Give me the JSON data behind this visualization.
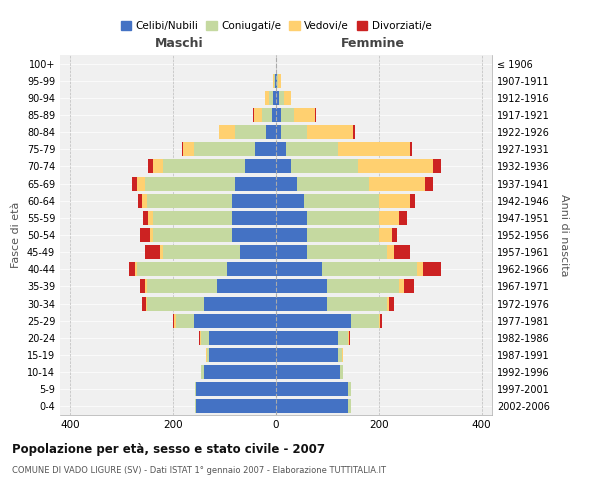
{
  "age_groups": [
    "0-4",
    "5-9",
    "10-14",
    "15-19",
    "20-24",
    "25-29",
    "30-34",
    "35-39",
    "40-44",
    "45-49",
    "50-54",
    "55-59",
    "60-64",
    "65-69",
    "70-74",
    "75-79",
    "80-84",
    "85-89",
    "90-94",
    "95-99",
    "100+"
  ],
  "birth_years": [
    "2002-2006",
    "1997-2001",
    "1992-1996",
    "1987-1991",
    "1982-1986",
    "1977-1981",
    "1972-1976",
    "1967-1971",
    "1962-1966",
    "1957-1961",
    "1952-1956",
    "1947-1951",
    "1942-1946",
    "1937-1941",
    "1932-1936",
    "1927-1931",
    "1922-1926",
    "1917-1921",
    "1912-1916",
    "1907-1911",
    "≤ 1906"
  ],
  "maschi": {
    "celibi": [
      155,
      155,
      140,
      130,
      130,
      160,
      140,
      115,
      95,
      70,
      85,
      85,
      85,
      80,
      60,
      40,
      20,
      8,
      5,
      2,
      0
    ],
    "coniugati": [
      3,
      3,
      5,
      5,
      15,
      35,
      110,
      135,
      175,
      150,
      155,
      155,
      165,
      175,
      160,
      120,
      60,
      20,
      8,
      2,
      0
    ],
    "vedovi": [
      0,
      0,
      0,
      1,
      2,
      3,
      3,
      5,
      5,
      5,
      5,
      8,
      10,
      15,
      20,
      20,
      30,
      15,
      8,
      2,
      0
    ],
    "divorziati": [
      0,
      0,
      0,
      0,
      2,
      3,
      8,
      10,
      10,
      30,
      20,
      10,
      8,
      10,
      8,
      3,
      0,
      2,
      0,
      0,
      0
    ]
  },
  "femmine": {
    "nubili": [
      140,
      140,
      125,
      120,
      120,
      145,
      100,
      100,
      90,
      60,
      60,
      60,
      55,
      40,
      30,
      20,
      10,
      10,
      5,
      2,
      0
    ],
    "coniugate": [
      5,
      5,
      5,
      8,
      20,
      55,
      115,
      140,
      185,
      155,
      140,
      140,
      145,
      140,
      130,
      100,
      50,
      25,
      10,
      2,
      0
    ],
    "vedove": [
      0,
      0,
      0,
      2,
      2,
      3,
      5,
      8,
      10,
      15,
      25,
      40,
      60,
      110,
      145,
      140,
      90,
      40,
      15,
      5,
      0
    ],
    "divorziate": [
      0,
      0,
      0,
      0,
      2,
      3,
      10,
      20,
      35,
      30,
      10,
      15,
      10,
      15,
      15,
      5,
      3,
      2,
      0,
      0,
      0
    ]
  },
  "colors": {
    "celibi": "#4472C4",
    "coniugati": "#c5d9a0",
    "vedovi": "#ffd070",
    "divorziati": "#cc2222"
  },
  "title": "Popolazione per età, sesso e stato civile - 2007",
  "subtitle": "COMUNE DI VADO LIGURE (SV) - Dati ISTAT 1° gennaio 2007 - Elaborazione TUTTITALIA.IT",
  "xlabel_left": "Maschi",
  "xlabel_right": "Femmine",
  "ylabel_left": "Fasce di età",
  "ylabel_right": "Anni di nascita",
  "xlim": 420,
  "legend_labels": [
    "Celibi/Nubili",
    "Coniugati/e",
    "Vedovi/e",
    "Divorziati/e"
  ],
  "bg_color": "#f0f0f0",
  "bar_height": 0.82
}
